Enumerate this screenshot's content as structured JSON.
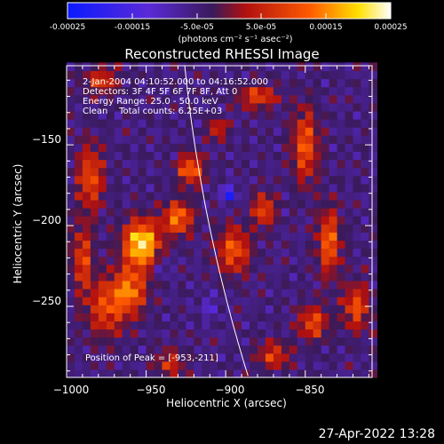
{
  "colorbar": {
    "ticks": [
      "-0.00025",
      "-0.00015",
      "-5.0e-05",
      "5.0e-05",
      "0.00015",
      "0.00025"
    ],
    "unit": "(photons cm⁻² s⁻¹ asec⁻²)"
  },
  "chart_data": {
    "type": "heatmap",
    "title": "Reconstructed RHESSI Image",
    "xlabel": "Heliocentric X (arcsec)",
    "ylabel": "Heliocentric Y (arcsec)",
    "xlim": [
      -1000,
      -808
    ],
    "ylim": [
      -294,
      -101
    ],
    "xticks": [
      -1000,
      -950,
      -900,
      -850
    ],
    "yticks": [
      -150,
      -200,
      -250
    ],
    "xtick_labels": [
      "−1000",
      "−950",
      "−900",
      "−850"
    ],
    "ytick_labels": [
      "−150",
      "−200",
      "−250"
    ],
    "zrange": [
      -0.00025,
      0.00025
    ],
    "colormap": "blue-purple-red-yellow-white",
    "peak": [
      -953,
      -211
    ],
    "info_lines": [
      "2-Jan-2004 04:10:52.000 to 04:16:52.000",
      "Detectors: 3F 4F 5F 6F 7F 8F, Att 0",
      "Energy Range: 25.0 - 50.0 keV",
      "Clean    Total counts: 6.25E+03"
    ],
    "peak_label": "Position of Peak = [-953,-211]"
  },
  "timestamp": "27-Apr-2022 13:28",
  "colors": {
    "background": "#000000",
    "foreground": "#ffffff",
    "limb": "#ffffff"
  }
}
